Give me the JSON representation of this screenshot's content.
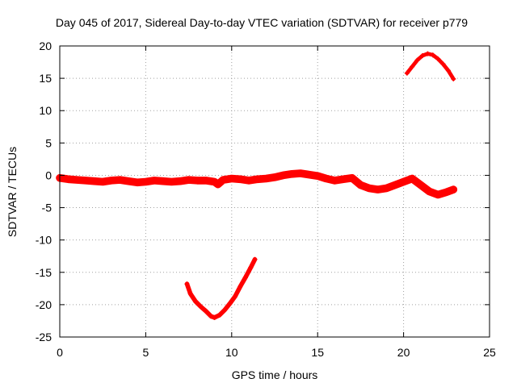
{
  "chart_data": {
    "type": "scatter",
    "title": "Day 045 of 2017, Sidereal Day-to-day VTEC variation (SDTVAR) for receiver p779",
    "xlabel": "GPS time / hours",
    "ylabel": "SDTVAR / TECUs",
    "xlim": [
      0,
      25
    ],
    "ylim": [
      -25,
      20
    ],
    "xticks": [
      0,
      5,
      10,
      15,
      20,
      25
    ],
    "yticks": [
      -25,
      -20,
      -15,
      -10,
      -5,
      0,
      5,
      10,
      15,
      20
    ],
    "grid": true,
    "marker_color": "#ff0000",
    "series": [
      {
        "name": "main-band",
        "band_halfwidth": 0.6,
        "x": [
          0.0,
          0.5,
          1.0,
          1.5,
          2.0,
          2.5,
          3.0,
          3.5,
          4.0,
          4.5,
          5.0,
          5.5,
          6.0,
          6.5,
          7.0,
          7.5,
          8.0,
          8.5,
          9.0,
          9.2,
          9.5,
          10.0,
          10.5,
          11.0,
          11.5,
          12.0,
          12.5,
          13.0,
          13.5,
          14.0,
          14.5,
          15.0,
          15.5,
          16.0,
          16.5,
          17.0,
          17.5,
          18.0,
          18.5,
          19.0,
          19.5,
          20.0,
          20.5,
          21.0,
          21.5,
          22.0,
          22.5,
          22.9
        ],
        "y": [
          -0.4,
          -0.6,
          -0.7,
          -0.8,
          -0.9,
          -1.0,
          -0.8,
          -0.7,
          -0.9,
          -1.1,
          -1.0,
          -0.8,
          -0.9,
          -1.0,
          -0.9,
          -0.7,
          -0.8,
          -0.8,
          -1.0,
          -1.4,
          -0.7,
          -0.5,
          -0.6,
          -0.8,
          -0.6,
          -0.5,
          -0.3,
          0.0,
          0.2,
          0.3,
          0.1,
          -0.1,
          -0.5,
          -0.8,
          -0.6,
          -0.4,
          -1.5,
          -2.0,
          -2.2,
          -2.0,
          -1.5,
          -1.0,
          -0.5,
          -1.5,
          -2.5,
          -3.0,
          -2.6,
          -2.2
        ]
      },
      {
        "name": "negative-excursion",
        "band_halfwidth": 0.35,
        "x": [
          7.4,
          7.6,
          7.9,
          8.2,
          8.5,
          8.8,
          9.0,
          9.3,
          9.6,
          9.9,
          10.2,
          10.5,
          10.8,
          11.1,
          11.35
        ],
        "y": [
          -16.8,
          -18.3,
          -19.5,
          -20.3,
          -21.0,
          -21.8,
          -22.0,
          -21.6,
          -20.8,
          -19.8,
          -18.7,
          -17.2,
          -15.8,
          -14.3,
          -13.0
        ]
      },
      {
        "name": "positive-excursion",
        "band_halfwidth": 0.3,
        "x": [
          20.2,
          20.5,
          20.8,
          21.1,
          21.4,
          21.7,
          22.0,
          22.3,
          22.6,
          22.9
        ],
        "y": [
          15.8,
          16.8,
          17.8,
          18.5,
          18.8,
          18.6,
          18.0,
          17.2,
          16.2,
          14.9
        ]
      }
    ]
  }
}
